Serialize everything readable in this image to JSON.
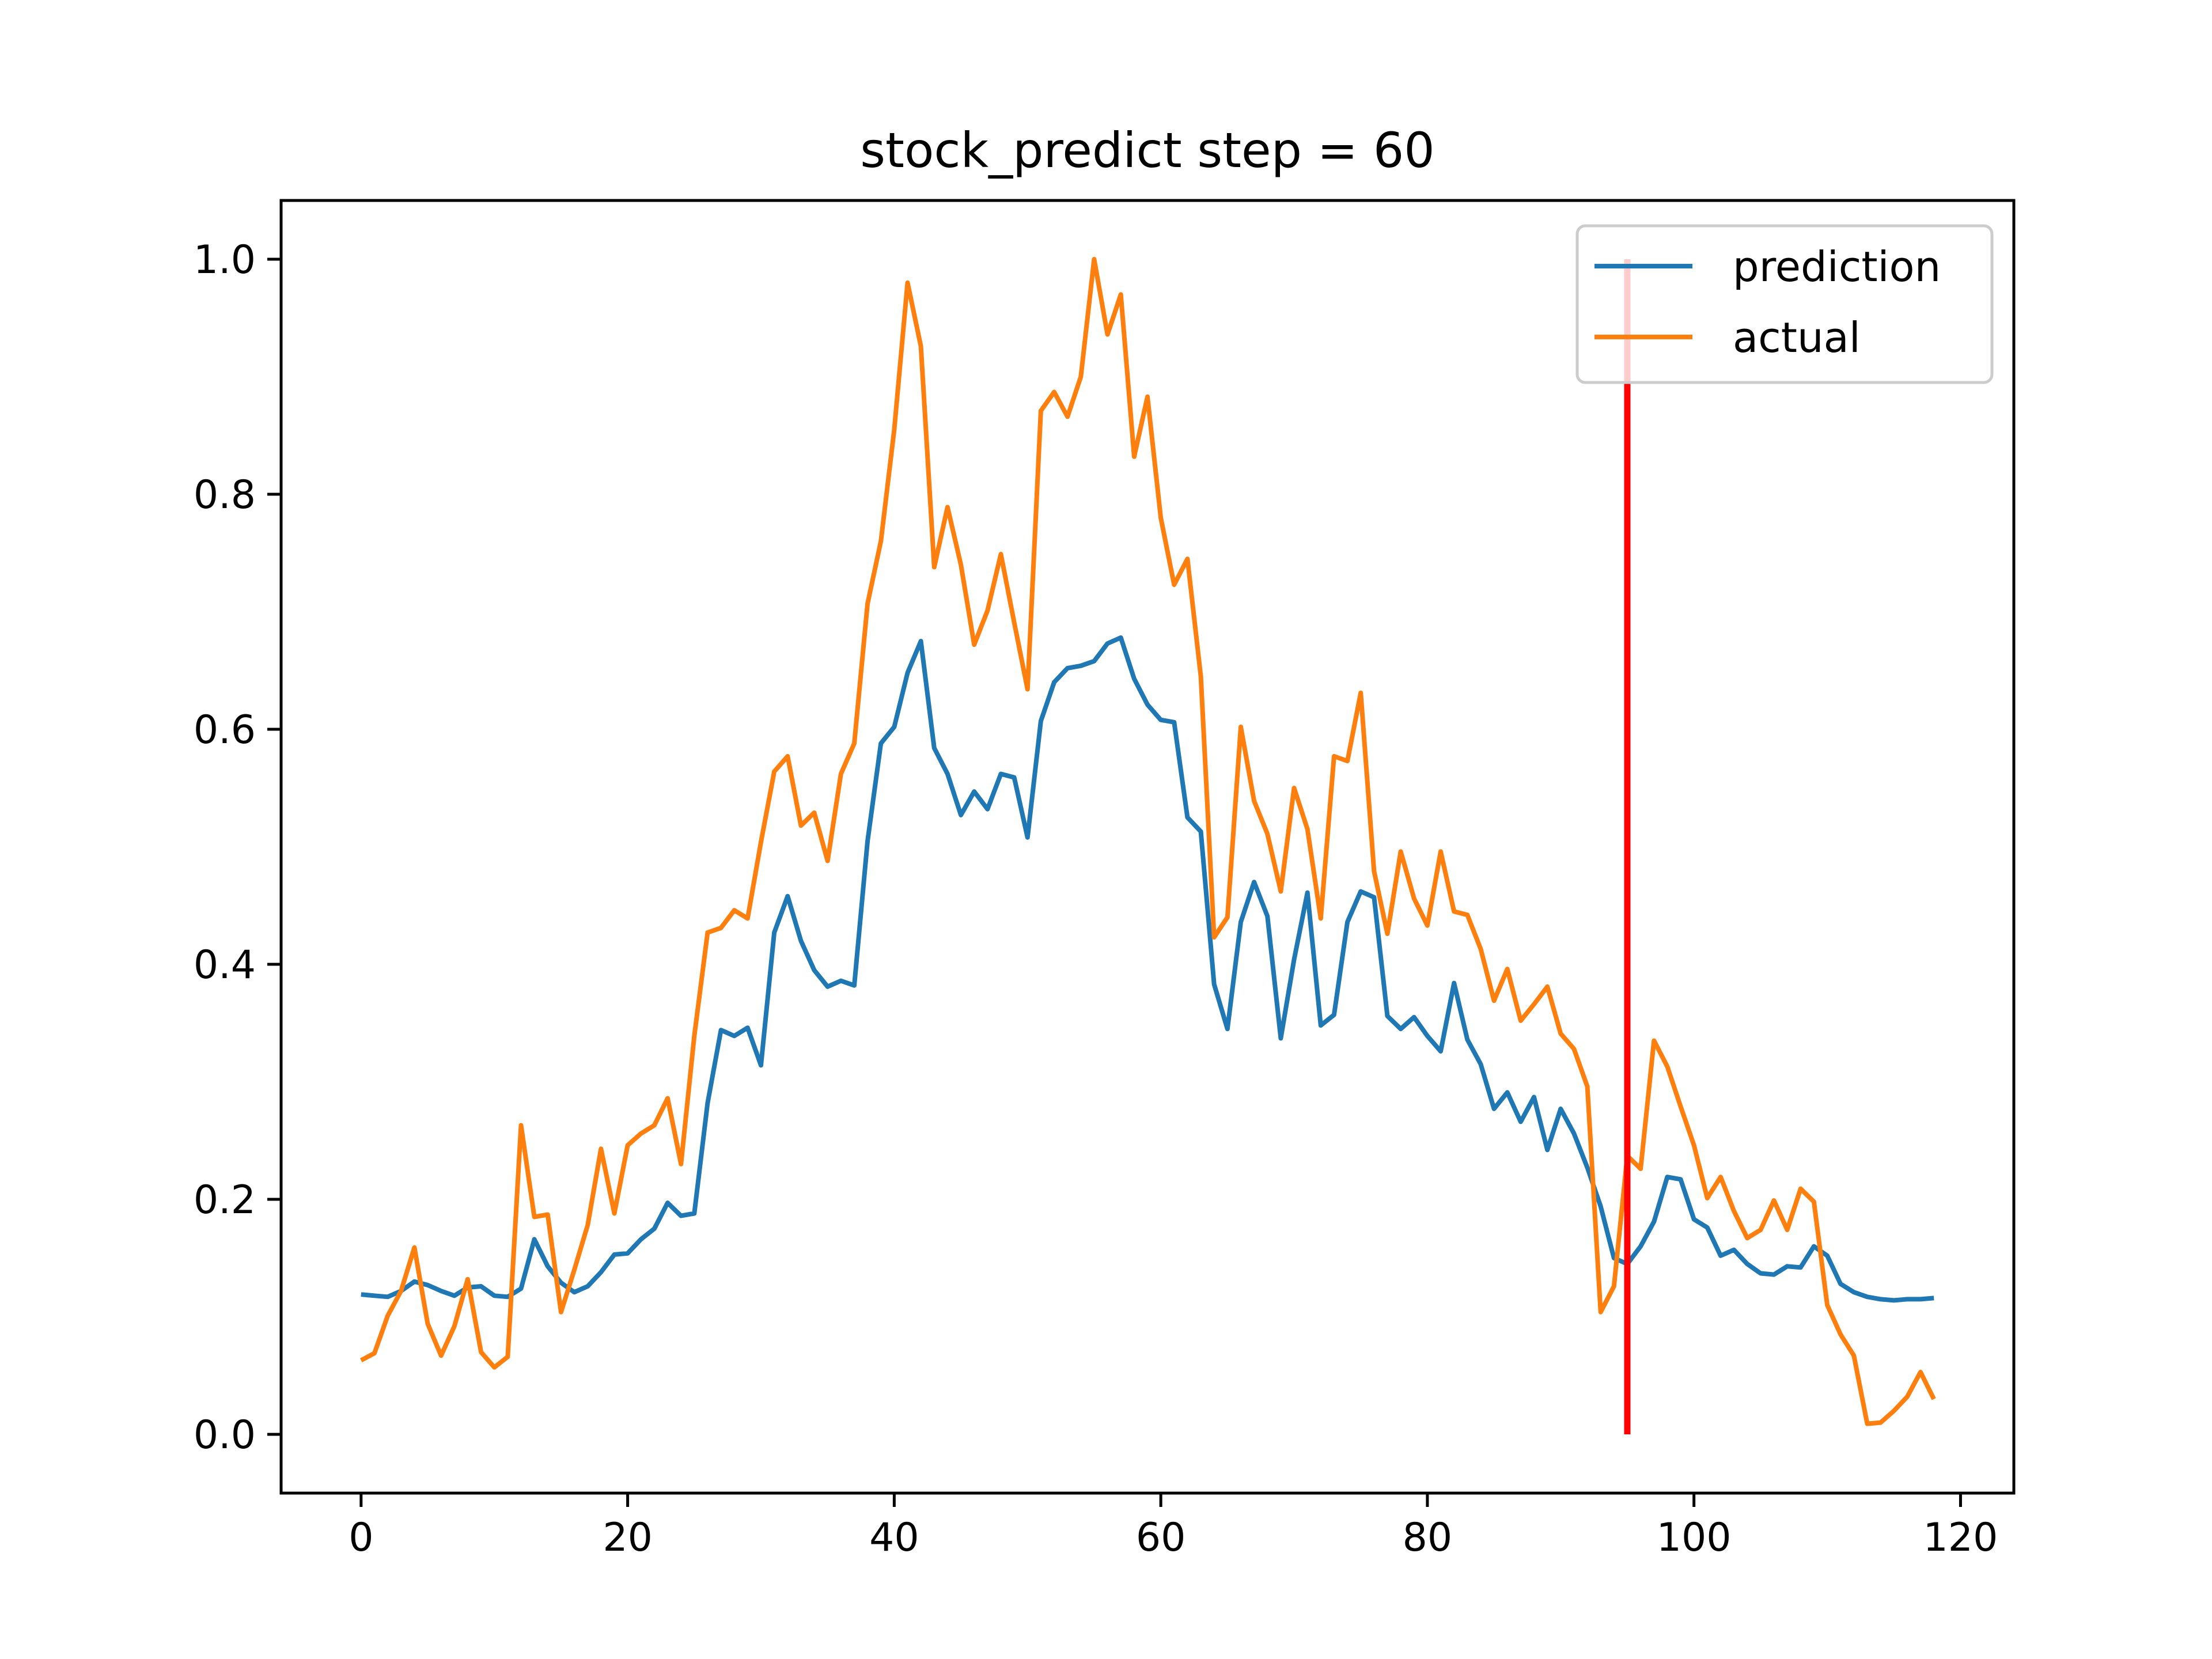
{
  "chart_data": {
    "type": "line",
    "title": "stock_predict step = 60",
    "xlabel": "",
    "ylabel": "",
    "xlim": [
      -6,
      124
    ],
    "ylim": [
      -0.05,
      1.05
    ],
    "x_ticks": [
      0,
      20,
      40,
      60,
      80,
      100,
      120
    ],
    "y_ticks": [
      0.0,
      0.2,
      0.4,
      0.6,
      0.8,
      1.0
    ],
    "x_tick_labels": [
      "0",
      "20",
      "40",
      "60",
      "80",
      "100",
      "120"
    ],
    "y_tick_labels": [
      "0.0",
      "0.2",
      "0.4",
      "0.6",
      "0.8",
      "1.0"
    ],
    "grid": false,
    "legend_position": "top-right",
    "series": [
      {
        "name": "prediction",
        "color": "#1f77b4",
        "values": [
          0.119,
          0.118,
          0.117,
          0.122,
          0.13,
          0.127,
          0.122,
          0.118,
          0.125,
          0.126,
          0.118,
          0.117,
          0.124,
          0.166,
          0.143,
          0.129,
          0.121,
          0.126,
          0.138,
          0.153,
          0.154,
          0.166,
          0.175,
          0.197,
          0.186,
          0.188,
          0.282,
          0.344,
          0.339,
          0.346,
          0.314,
          0.427,
          0.458,
          0.42,
          0.395,
          0.381,
          0.386,
          0.382,
          0.505,
          0.588,
          0.602,
          0.648,
          0.675,
          0.584,
          0.562,
          0.527,
          0.547,
          0.532,
          0.562,
          0.559,
          0.508,
          0.607,
          0.64,
          0.652,
          0.654,
          0.658,
          0.673,
          0.678,
          0.643,
          0.621,
          0.608,
          0.606,
          0.525,
          0.513,
          0.383,
          0.345,
          0.436,
          0.47,
          0.441,
          0.337,
          0.404,
          0.461,
          0.348,
          0.357,
          0.436,
          0.462,
          0.457,
          0.356,
          0.345,
          0.355,
          0.339,
          0.326,
          0.384,
          0.336,
          0.315,
          0.277,
          0.291,
          0.266,
          0.287,
          0.242,
          0.277,
          0.256,
          0.227,
          0.194,
          0.15,
          0.145,
          0.16,
          0.181,
          0.219,
          0.217,
          0.183,
          0.176,
          0.152,
          0.157,
          0.145,
          0.137,
          0.136,
          0.143,
          0.142,
          0.16,
          0.152,
          0.128,
          0.121,
          0.117,
          0.115,
          0.114,
          0.115,
          0.115,
          0.116
        ]
      },
      {
        "name": "actual",
        "color": "#ff7f0e",
        "values": [
          0.063,
          0.069,
          0.101,
          0.122,
          0.159,
          0.094,
          0.067,
          0.092,
          0.132,
          0.07,
          0.057,
          0.066,
          0.263,
          0.185,
          0.187,
          0.104,
          0.14,
          0.178,
          0.243,
          0.188,
          0.246,
          0.256,
          0.263,
          0.286,
          0.23,
          0.339,
          0.427,
          0.431,
          0.446,
          0.439,
          0.504,
          0.564,
          0.577,
          0.518,
          0.529,
          0.488,
          0.562,
          0.588,
          0.707,
          0.76,
          0.855,
          0.98,
          0.926,
          0.738,
          0.789,
          0.74,
          0.672,
          0.701,
          0.749,
          0.691,
          0.634,
          0.871,
          0.887,
          0.866,
          0.9,
          1.0,
          0.936,
          0.97,
          0.832,
          0.883,
          0.78,
          0.723,
          0.745,
          0.645,
          0.423,
          0.44,
          0.602,
          0.539,
          0.511,
          0.462,
          0.55,
          0.515,
          0.439,
          0.577,
          0.573,
          0.631,
          0.479,
          0.426,
          0.496,
          0.456,
          0.433,
          0.496,
          0.445,
          0.442,
          0.413,
          0.369,
          0.396,
          0.352,
          0.366,
          0.381,
          0.341,
          0.328,
          0.296,
          0.104,
          0.126,
          0.237,
          0.226,
          0.335,
          0.313,
          0.279,
          0.246,
          0.201,
          0.219,
          0.19,
          0.167,
          0.174,
          0.199,
          0.174,
          0.209,
          0.198,
          0.11,
          0.085,
          0.067,
          0.009,
          0.01,
          0.02,
          0.032,
          0.053,
          0.03
        ]
      }
    ],
    "vertical_marker": {
      "x": 95,
      "y_range": [
        0.0,
        1.0
      ],
      "color": "#ff0000"
    }
  },
  "colors": {
    "axes": "#000000",
    "background": "#ffffff",
    "legend_border": "#cccccc"
  }
}
